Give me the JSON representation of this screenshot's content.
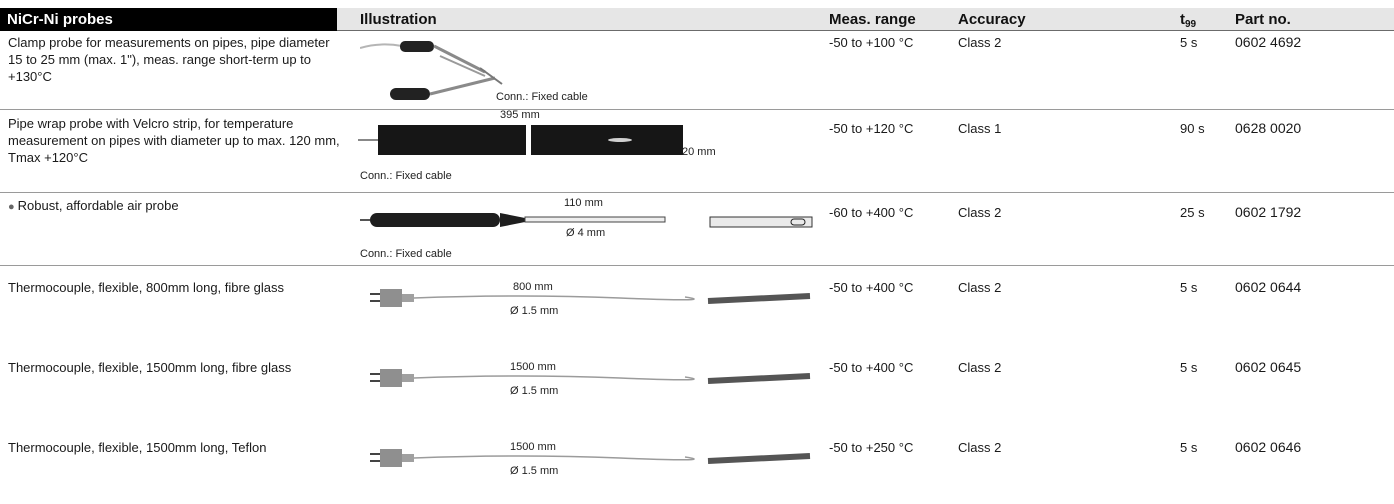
{
  "header": {
    "title": "NiCr-Ni probes",
    "illustration": "Illustration",
    "meas_range": "Meas. range",
    "accuracy": "Accuracy",
    "t99_main": "t",
    "t99_sub": "99",
    "part_no": "Part no."
  },
  "rows": [
    {
      "description": "Clamp probe for measurements on pipes, pipe diameter 15 to 25 mm (max. 1\"), meas. range short-term up to +130°C",
      "illustration_labels": [
        "Conn.: Fixed cable"
      ],
      "meas_range": "-50 to +100 °C",
      "accuracy": "Class 2",
      "t99": "5 s",
      "part_no": "0602 4692"
    },
    {
      "description": "Pipe wrap probe with Velcro strip, for temperature measurement on pipes with diameter up to max. 120 mm, Tmax +120°C",
      "illustration_labels": [
        "395 mm",
        "20 mm",
        "Conn.: Fixed cable"
      ],
      "meas_range": "-50 to +120 °C",
      "accuracy": "Class 1",
      "t99": "90 s",
      "part_no": "0628 0020"
    },
    {
      "description": "Robust, affordable air probe",
      "illustration_labels": [
        "110 mm",
        "Ø 4 mm",
        "Conn.: Fixed cable"
      ],
      "meas_range": "-60 to +400 °C",
      "accuracy": "Class 2",
      "t99": "25 s",
      "part_no": "0602 1792"
    },
    {
      "description": "Thermocouple, flexible, 800mm long, fibre glass",
      "illustration_labels": [
        "800 mm",
        "Ø 1.5 mm"
      ],
      "meas_range": "-50 to +400 °C",
      "accuracy": "Class 2",
      "t99": "5 s",
      "part_no": "0602 0644"
    },
    {
      "description": "Thermocouple, flexible, 1500mm long, fibre glass",
      "illustration_labels": [
        "1500 mm",
        "Ø 1.5 mm"
      ],
      "meas_range": "-50 to +400 °C",
      "accuracy": "Class 2",
      "t99": "5 s",
      "part_no": "0602 0645"
    },
    {
      "description": "Thermocouple, flexible, 1500mm long, Teflon",
      "illustration_labels": [
        "1500 mm",
        "Ø 1.5 mm"
      ],
      "meas_range": "-50 to +250 °C",
      "accuracy": "Class 2",
      "t99": "5 s",
      "part_no": "0602 0646"
    }
  ]
}
